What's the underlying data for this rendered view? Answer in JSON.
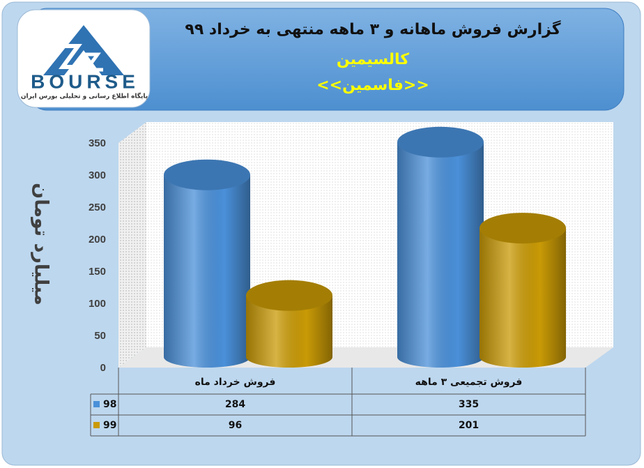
{
  "logo": {
    "text": "BOURSE",
    "caption": "پایگاه اطلاع رسانی و تحلیلی بورس ایران"
  },
  "chart_data": {
    "type": "bar",
    "title": "گزارش فروش ماهانه و ۳ ماهه منتهی به خرداد ۹۹",
    "subtitle": "کالسیمین",
    "subtitle2": "<<فاسمین>>",
    "y_label": "میلیارد تومان",
    "categories": [
      "فروش خرداد ماه",
      "فروش تجمیعی ۳ ماهه"
    ],
    "series": [
      {
        "name": "98",
        "color": "#4a90d9",
        "values": [
          284,
          335
        ]
      },
      {
        "name": "99",
        "color": "#c99a06",
        "values": [
          96,
          201
        ]
      }
    ],
    "ylim": [
      0,
      350
    ],
    "yticks": [
      0,
      50,
      100,
      150,
      200,
      250,
      300,
      350
    ]
  }
}
